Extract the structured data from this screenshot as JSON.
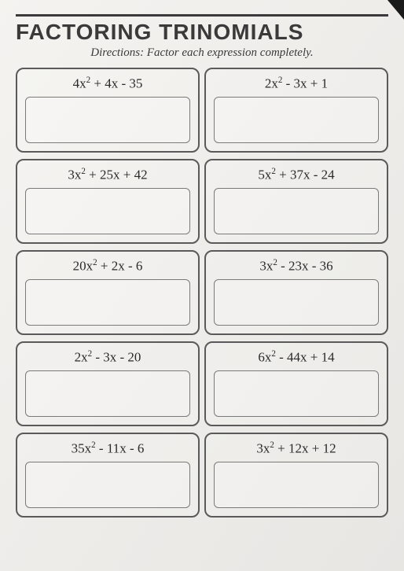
{
  "title": "FACTORING TRINOMIALS",
  "directions": "Directions: Factor each expression completely.",
  "problems": [
    {
      "a": "4",
      "b": "+ 4",
      "c": "- 35"
    },
    {
      "a": "2",
      "b": "- 3",
      "c": "+ 1"
    },
    {
      "a": "3",
      "b": "+ 25",
      "c": "+ 42"
    },
    {
      "a": "5",
      "b": "+ 37",
      "c": "- 24"
    },
    {
      "a": "20",
      "b": "+ 2",
      "c": "- 6"
    },
    {
      "a": "3",
      "b": "- 23",
      "c": "- 36"
    },
    {
      "a": "2",
      "b": "- 3",
      "c": "- 20"
    },
    {
      "a": "6",
      "b": "- 44",
      "c": "+ 14"
    },
    {
      "a": "35",
      "b": "- 11",
      "c": "- 6"
    },
    {
      "a": "3",
      "b": "+ 12",
      "c": "+ 12"
    }
  ],
  "styling": {
    "background_color": "#f0ede8",
    "border_color": "#5a5a5a",
    "text_color": "#2a2a2a",
    "title_fontsize": 28,
    "expression_fontsize": 17,
    "directions_fontsize": 15,
    "cell_border_radius": 10,
    "answer_border_radius": 6,
    "grid_columns": 2,
    "grid_rows": 5
  }
}
